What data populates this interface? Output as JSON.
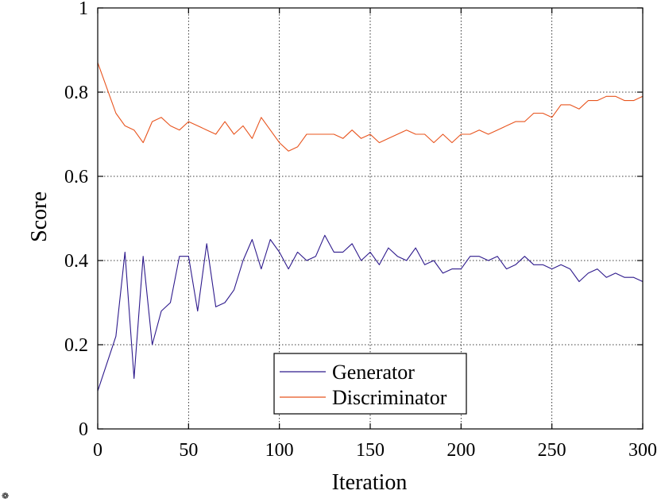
{
  "chart_data": {
    "type": "line",
    "title": "",
    "xlabel": "Iteration",
    "ylabel": "Score",
    "xlim": [
      0,
      300
    ],
    "ylim": [
      0,
      1
    ],
    "xticks": [
      0,
      50,
      100,
      150,
      200,
      250,
      300
    ],
    "yticks": [
      0,
      0.2,
      0.4,
      0.6,
      0.8,
      1
    ],
    "xtick_labels": [
      "0",
      "50",
      "100",
      "150",
      "200",
      "250",
      "300"
    ],
    "ytick_labels": [
      "0",
      "0.2",
      "0.4",
      "0.6",
      "0.8",
      "1"
    ],
    "grid": true,
    "legend_position": "bottom-center",
    "series": [
      {
        "name": "Generator",
        "color": "#2e1a8c",
        "x": [
          0,
          10,
          15,
          20,
          25,
          30,
          35,
          40,
          45,
          50,
          55,
          60,
          65,
          70,
          75,
          80,
          85,
          90,
          95,
          100,
          105,
          110,
          115,
          120,
          125,
          130,
          135,
          140,
          145,
          150,
          155,
          160,
          165,
          170,
          175,
          180,
          185,
          190,
          195,
          200,
          205,
          210,
          215,
          220,
          225,
          230,
          235,
          240,
          245,
          250,
          255,
          260,
          265,
          270,
          275,
          280,
          285,
          290,
          295,
          300
        ],
        "values": [
          0.09,
          0.22,
          0.42,
          0.12,
          0.41,
          0.2,
          0.28,
          0.3,
          0.41,
          0.41,
          0.28,
          0.44,
          0.29,
          0.3,
          0.33,
          0.4,
          0.45,
          0.38,
          0.45,
          0.42,
          0.38,
          0.42,
          0.4,
          0.41,
          0.46,
          0.42,
          0.42,
          0.44,
          0.4,
          0.42,
          0.39,
          0.43,
          0.41,
          0.4,
          0.43,
          0.39,
          0.4,
          0.37,
          0.38,
          0.38,
          0.41,
          0.41,
          0.4,
          0.41,
          0.38,
          0.39,
          0.41,
          0.39,
          0.39,
          0.38,
          0.39,
          0.38,
          0.35,
          0.37,
          0.38,
          0.36,
          0.37,
          0.36,
          0.36,
          0.35
        ]
      },
      {
        "name": "Discriminator",
        "color": "#e8541e",
        "x": [
          0,
          10,
          15,
          20,
          25,
          30,
          35,
          40,
          45,
          50,
          55,
          60,
          65,
          70,
          75,
          80,
          85,
          90,
          95,
          100,
          105,
          110,
          115,
          120,
          125,
          130,
          135,
          140,
          145,
          150,
          155,
          160,
          165,
          170,
          175,
          180,
          185,
          190,
          195,
          200,
          205,
          210,
          215,
          220,
          225,
          230,
          235,
          240,
          245,
          250,
          255,
          260,
          265,
          270,
          275,
          280,
          285,
          290,
          295,
          300
        ],
        "values": [
          0.87,
          0.75,
          0.72,
          0.71,
          0.68,
          0.73,
          0.74,
          0.72,
          0.71,
          0.73,
          0.72,
          0.71,
          0.7,
          0.73,
          0.7,
          0.72,
          0.69,
          0.74,
          0.71,
          0.68,
          0.66,
          0.67,
          0.7,
          0.7,
          0.7,
          0.7,
          0.69,
          0.71,
          0.69,
          0.7,
          0.68,
          0.69,
          0.7,
          0.71,
          0.7,
          0.7,
          0.68,
          0.7,
          0.68,
          0.7,
          0.7,
          0.71,
          0.7,
          0.71,
          0.72,
          0.73,
          0.73,
          0.75,
          0.75,
          0.74,
          0.77,
          0.77,
          0.76,
          0.78,
          0.78,
          0.79,
          0.79,
          0.78,
          0.78,
          0.79
        ]
      }
    ]
  }
}
